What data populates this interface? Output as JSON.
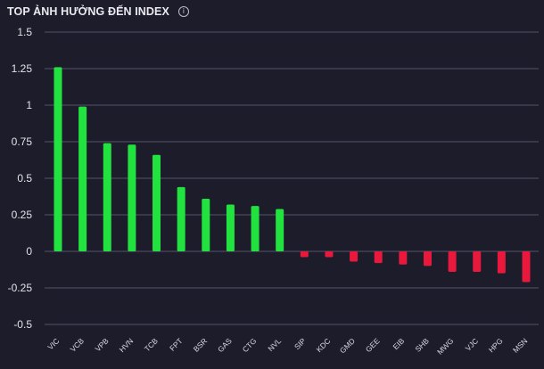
{
  "header": {
    "title": "TOP ẢNH HƯỞNG ĐẾN INDEX",
    "info_icon": "info-icon"
  },
  "colors": {
    "background": "#1d1c2a",
    "grid": "#55546a",
    "positive": "#22e23f",
    "negative": "#e8193c"
  },
  "chart_data": {
    "type": "bar",
    "title": "TOP ẢNH HƯỞNG ĐẾN INDEX",
    "xlabel": "",
    "ylabel": "",
    "ylim": [
      -0.5,
      1.5
    ],
    "yticks": [
      1.5,
      1.25,
      1,
      0.75,
      0.5,
      0.25,
      0,
      -0.25,
      -0.5
    ],
    "ytick_labels": [
      "1.5",
      "1.25",
      "1",
      "0.75",
      "0.5",
      "0.25",
      "0",
      "-0.25",
      "-0.5"
    ],
    "grid": true,
    "categories": [
      "VIC",
      "VCB",
      "VPB",
      "HVN",
      "TCB",
      "FPT",
      "BSR",
      "GAS",
      "CTG",
      "NVL",
      "SIP",
      "KDC",
      "GMD",
      "GEE",
      "EIB",
      "SHB",
      "MWG",
      "VJC",
      "HPG",
      "MSN"
    ],
    "values": [
      1.26,
      0.99,
      0.74,
      0.73,
      0.66,
      0.44,
      0.36,
      0.32,
      0.31,
      0.29,
      -0.04,
      -0.04,
      -0.07,
      -0.08,
      -0.09,
      -0.1,
      -0.14,
      -0.14,
      -0.15,
      -0.21
    ]
  }
}
